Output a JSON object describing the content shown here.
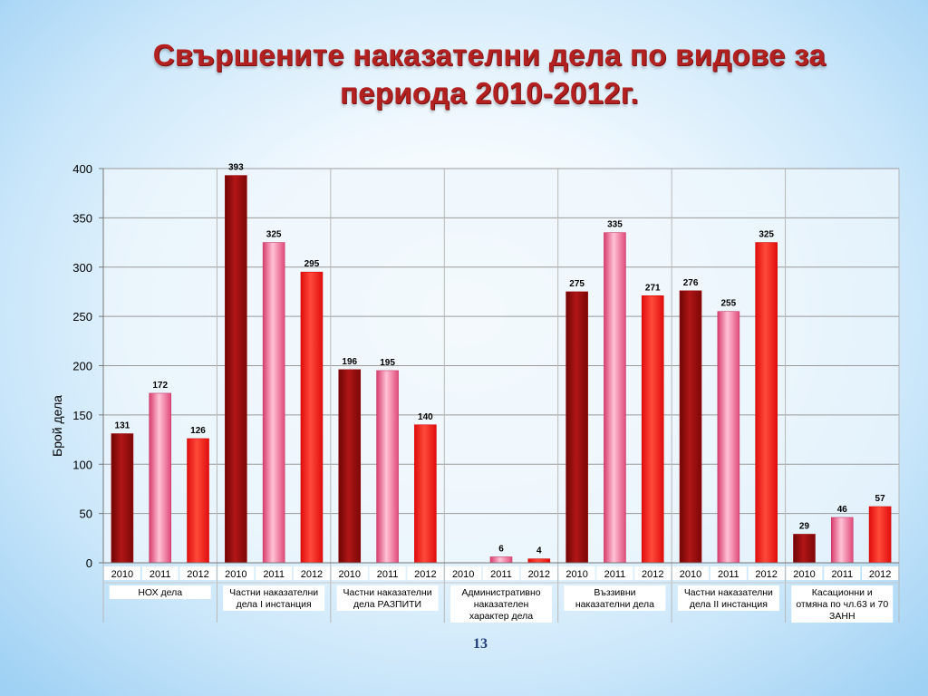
{
  "title": "Свършените наказателни дела по видове за периода 2010-2012г.",
  "page_number": "13",
  "colors": {
    "y2010": "#9b0b0b",
    "y2011": "#f06b9a",
    "y2012": "#ff1f1f",
    "title": "#b22020"
  },
  "chart_data": {
    "type": "bar",
    "title": "",
    "xlabel": "",
    "ylabel": "Брой дела",
    "ylim": [
      0,
      400
    ],
    "yticks": [
      0,
      50,
      100,
      150,
      200,
      250,
      300,
      350,
      400
    ],
    "grid": true,
    "legend": "none",
    "categories": [
      {
        "label": "НОХ дела",
        "label_lines": [
          "НОХ дела"
        ],
        "years": [
          "2010",
          "2011",
          "2012"
        ],
        "values": [
          131,
          172,
          126
        ]
      },
      {
        "label": "Частни наказателни дела I инстанция",
        "label_lines": [
          "Частни наказателни",
          "дела I инстанция"
        ],
        "years": [
          "2010",
          "2011",
          "2012"
        ],
        "values": [
          393,
          325,
          295
        ]
      },
      {
        "label": "Частни наказателни дела РАЗПИТИ",
        "label_lines": [
          "Частни наказателни",
          "дела РАЗПИТИ"
        ],
        "years": [
          "2010",
          "2011",
          "2012"
        ],
        "values": [
          196,
          195,
          140
        ]
      },
      {
        "label": "Административно наказателен характер дела",
        "label_lines": [
          "Административно",
          "наказателен",
          "характер дела"
        ],
        "years": [
          "2010",
          "2011",
          "2012"
        ],
        "values": [
          null,
          6,
          4
        ]
      },
      {
        "label": "Въззивни наказателни дела",
        "label_lines": [
          "Въззивни",
          "наказателни дела"
        ],
        "years": [
          "2010",
          "2011",
          "2012"
        ],
        "values": [
          275,
          335,
          271
        ]
      },
      {
        "label": "Частни наказателни дела II инстанция",
        "label_lines": [
          "Частни наказателни",
          "дела II инстанция"
        ],
        "years": [
          "2010",
          "2011",
          "2012"
        ],
        "values": [
          276,
          255,
          325
        ]
      },
      {
        "label": "Касационни и отмяна по чл.63 и 70 ЗАНН",
        "label_lines": [
          "Касационни и",
          "отмяна по чл.63 и 70",
          "ЗАНН"
        ],
        "years": [
          "2010",
          "2011",
          "2012"
        ],
        "values": [
          29,
          46,
          57
        ]
      }
    ]
  }
}
